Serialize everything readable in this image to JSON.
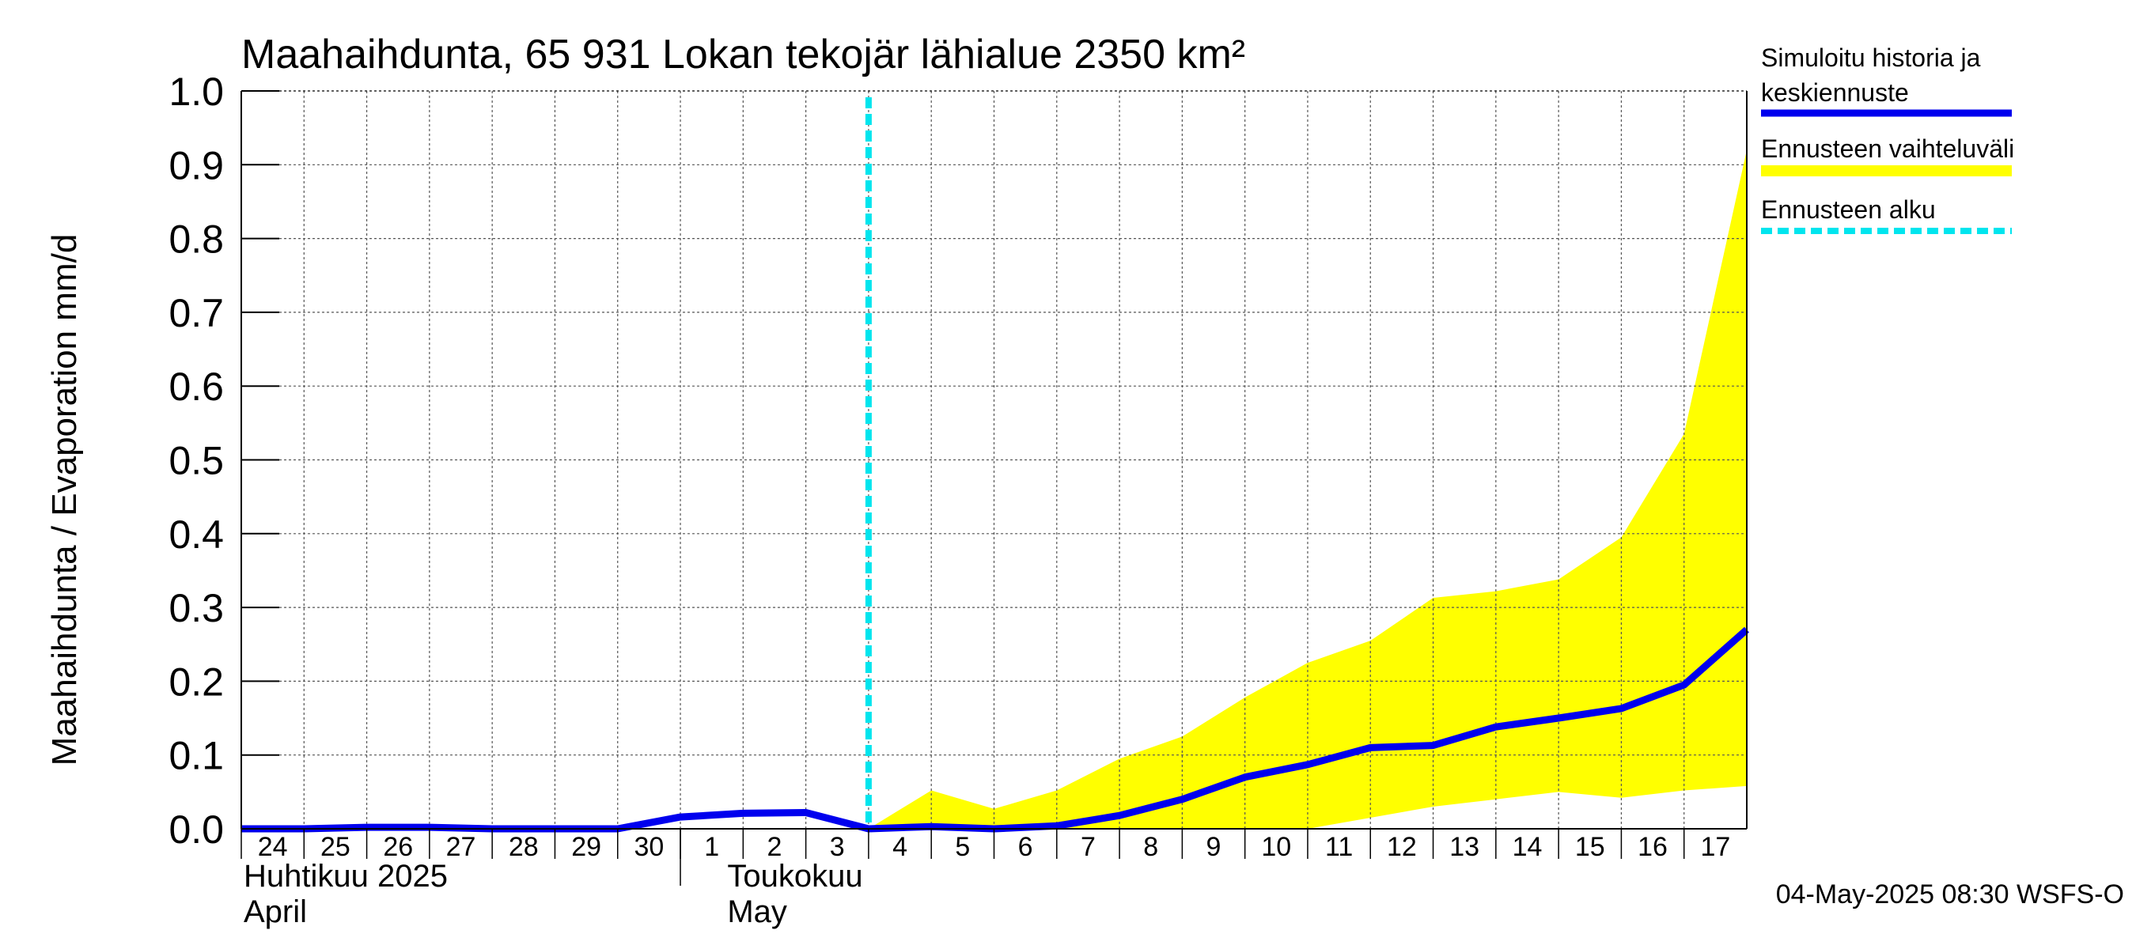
{
  "chart_data": {
    "type": "line",
    "title": "Maahaihdunta, 65 931 Lokan tekojär lähialue 2350 km²",
    "ylabel": "Maahaihdunta / Evaporation   mm/d",
    "ylim": [
      0.0,
      1.0
    ],
    "yticks": [
      "0.0",
      "0.1",
      "0.2",
      "0.3",
      "0.4",
      "0.5",
      "0.6",
      "0.7",
      "0.8",
      "0.9",
      "1.0"
    ],
    "x_tick_labels": [
      "24",
      "25",
      "26",
      "27",
      "28",
      "29",
      "30",
      "1",
      "2",
      "3",
      "4",
      "5",
      "6",
      "7",
      "8",
      "9",
      "10",
      "11",
      "12",
      "13",
      "14",
      "15",
      "16",
      "17"
    ],
    "x_dates": [
      "2025-04-24",
      "2025-04-25",
      "2025-04-26",
      "2025-04-27",
      "2025-04-28",
      "2025-04-29",
      "2025-04-30",
      "2025-05-01",
      "2025-05-02",
      "2025-05-03",
      "2025-05-04",
      "2025-05-05",
      "2025-05-06",
      "2025-05-07",
      "2025-05-08",
      "2025-05-09",
      "2025-05-10",
      "2025-05-11",
      "2025-05-12",
      "2025-05-13",
      "2025-05-14",
      "2025-05-15",
      "2025-05-16",
      "2025-05-17",
      "2025-05-18"
    ],
    "month_labels": [
      {
        "line1": "Huhtikuu  2025",
        "line2": "April"
      },
      {
        "line1": "Toukokuu",
        "line2": "May"
      }
    ],
    "grid": true,
    "forecast_start": "2025-05-04",
    "series": [
      {
        "name": "Simuloitu historia ja keskiennuste",
        "color": "#0000ee",
        "values": [
          0.0,
          0.0,
          0.002,
          0.002,
          0.0,
          0.0,
          0.0,
          0.016,
          0.021,
          0.022,
          0.0,
          0.003,
          0.0,
          0.004,
          0.018,
          0.04,
          0.07,
          0.087,
          0.11,
          0.113,
          0.138,
          0.15,
          0.163,
          0.195,
          0.27
        ]
      }
    ],
    "band": {
      "name": "Ennusteen vaihteluväli",
      "color": "#ffff00",
      "upper": [
        0.0,
        0.052,
        0.027,
        0.052,
        0.095,
        0.125,
        0.178,
        0.225,
        0.255,
        0.313,
        0.322,
        0.338,
        0.395,
        0.535,
        0.92
      ],
      "lower": [
        0.0,
        0.0,
        0.0,
        0.0,
        0.0,
        0.0,
        0.0,
        0.0,
        0.015,
        0.03,
        0.04,
        0.05,
        0.042,
        0.052,
        0.058
      ]
    },
    "legend": {
      "placement": "right",
      "entries": [
        {
          "line1": "Simuloitu historia ja",
          "line2": "keskiennuste",
          "color": "#0000ee",
          "style": "solid"
        },
        {
          "line1": "Ennusteen vaihteluväli",
          "line2": "",
          "color": "#ffff00",
          "style": "solid"
        },
        {
          "line1": "Ennusteen alku",
          "line2": "",
          "color": "#00e5ee",
          "style": "dashed"
        }
      ]
    },
    "footer": "04-May-2025 08:30 WSFS-O"
  }
}
